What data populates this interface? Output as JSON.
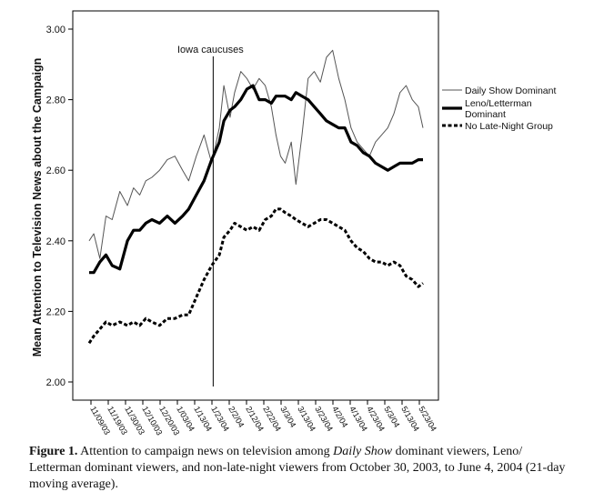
{
  "chart_data": {
    "type": "line",
    "ylabel": "Mean Attention to Television News about the Campaign",
    "ylim": [
      2.0,
      3.0
    ],
    "yticks": [
      "2.00",
      "2.20",
      "2.40",
      "2.60",
      "2.80",
      "3.00"
    ],
    "x_tick_labels": [
      "11/09/03",
      "11/19/03",
      "11/30/03",
      "12/10/03",
      "12/20/03",
      "1/03/04",
      "1/13/04",
      "1/23/04",
      "2/2/04",
      "2/12/04",
      "2/22/04",
      "3/3/04",
      "3/13/04",
      "3/23/04",
      "4/2/04",
      "4/13/04",
      "4/23/04",
      "5/3/04",
      "5/13/04",
      "5/23/04"
    ],
    "x_range": [
      "10/30/03",
      "6/4/04"
    ],
    "grid": false,
    "legend_position": "right",
    "annotation": {
      "label": "Iowa caucuses",
      "x": "1/19/04"
    },
    "series": [
      {
        "name": "Daily Show Dominant",
        "style": "thin",
        "color": "#555555",
        "x": [
          "10/30/03",
          "11/02/03",
          "11/06/03",
          "11/10/03",
          "11/14/03",
          "11/19/03",
          "11/24/03",
          "11/28/03",
          "12/02/03",
          "12/06/03",
          "12/10/03",
          "12/15/03",
          "12/20/03",
          "12/25/03",
          "12/30/03",
          "1/03/04",
          "1/08/04",
          "1/13/04",
          "1/18/04",
          "1/23/04",
          "1/26/04",
          "1/30/04",
          "2/02/04",
          "2/06/04",
          "2/10/04",
          "2/14/04",
          "2/18/04",
          "2/22/04",
          "2/26/04",
          "2/29/04",
          "3/03/04",
          "3/06/04",
          "3/10/04",
          "3/13/04",
          "3/17/04",
          "3/21/04",
          "3/25/04",
          "3/29/04",
          "4/02/04",
          "4/06/04",
          "4/10/04",
          "4/14/04",
          "4/18/04",
          "4/22/04",
          "4/26/04",
          "4/30/04",
          "5/04/04",
          "5/08/04",
          "5/12/04",
          "5/16/04",
          "5/20/04",
          "5/24/04",
          "5/28/04",
          "6/01/04",
          "6/04/04"
        ],
        "values": [
          2.4,
          2.42,
          2.35,
          2.47,
          2.46,
          2.54,
          2.5,
          2.55,
          2.53,
          2.57,
          2.58,
          2.6,
          2.63,
          2.64,
          2.6,
          2.57,
          2.64,
          2.7,
          2.62,
          2.72,
          2.84,
          2.75,
          2.82,
          2.88,
          2.86,
          2.83,
          2.86,
          2.84,
          2.78,
          2.7,
          2.64,
          2.62,
          2.68,
          2.56,
          2.7,
          2.86,
          2.88,
          2.85,
          2.92,
          2.94,
          2.86,
          2.8,
          2.72,
          2.68,
          2.66,
          2.64,
          2.68,
          2.7,
          2.72,
          2.76,
          2.82,
          2.84,
          2.8,
          2.78,
          2.72
        ]
      },
      {
        "name": "Leno/Letterman Dominant",
        "style": "thick",
        "color": "#000000",
        "x": [
          "10/30/03",
          "11/02/03",
          "11/06/03",
          "11/10/03",
          "11/14/03",
          "11/19/03",
          "11/24/03",
          "11/28/03",
          "12/02/03",
          "12/06/03",
          "12/10/03",
          "12/15/03",
          "12/20/03",
          "12/25/03",
          "12/30/03",
          "1/03/04",
          "1/08/04",
          "1/13/04",
          "1/18/04",
          "1/23/04",
          "1/26/04",
          "1/30/04",
          "2/02/04",
          "2/06/04",
          "2/10/04",
          "2/14/04",
          "2/18/04",
          "2/22/04",
          "2/26/04",
          "2/29/04",
          "3/03/04",
          "3/06/04",
          "3/10/04",
          "3/13/04",
          "3/17/04",
          "3/21/04",
          "3/25/04",
          "3/29/04",
          "4/02/04",
          "4/06/04",
          "4/10/04",
          "4/14/04",
          "4/18/04",
          "4/22/04",
          "4/26/04",
          "4/30/04",
          "5/04/04",
          "5/08/04",
          "5/12/04",
          "5/16/04",
          "5/20/04",
          "5/24/04",
          "5/28/04",
          "6/01/04",
          "6/04/04"
        ],
        "values": [
          2.31,
          2.31,
          2.34,
          2.36,
          2.33,
          2.32,
          2.4,
          2.43,
          2.43,
          2.45,
          2.46,
          2.45,
          2.47,
          2.45,
          2.47,
          2.49,
          2.53,
          2.57,
          2.63,
          2.68,
          2.74,
          2.77,
          2.78,
          2.8,
          2.83,
          2.84,
          2.8,
          2.8,
          2.79,
          2.81,
          2.81,
          2.81,
          2.8,
          2.82,
          2.81,
          2.8,
          2.78,
          2.76,
          2.74,
          2.73,
          2.72,
          2.72,
          2.68,
          2.67,
          2.65,
          2.64,
          2.62,
          2.61,
          2.6,
          2.61,
          2.62,
          2.62,
          2.62,
          2.63,
          2.63
        ]
      },
      {
        "name": "No Late-Night Group",
        "style": "dashed",
        "color": "#000000",
        "x": [
          "10/30/03",
          "11/02/03",
          "11/06/03",
          "11/10/03",
          "11/14/03",
          "11/19/03",
          "11/24/03",
          "11/28/03",
          "12/02/03",
          "12/06/03",
          "12/10/03",
          "12/15/03",
          "12/20/03",
          "12/25/03",
          "12/30/03",
          "1/03/04",
          "1/08/04",
          "1/13/04",
          "1/18/04",
          "1/23/04",
          "1/26/04",
          "1/30/04",
          "2/02/04",
          "2/06/04",
          "2/10/04",
          "2/14/04",
          "2/18/04",
          "2/22/04",
          "2/26/04",
          "2/29/04",
          "3/03/04",
          "3/06/04",
          "3/10/04",
          "3/13/04",
          "3/17/04",
          "3/21/04",
          "3/25/04",
          "3/29/04",
          "4/02/04",
          "4/06/04",
          "4/10/04",
          "4/14/04",
          "4/18/04",
          "4/22/04",
          "4/26/04",
          "4/30/04",
          "5/04/04",
          "5/08/04",
          "5/12/04",
          "5/16/04",
          "5/20/04",
          "5/24/04",
          "5/28/04",
          "6/01/04",
          "6/04/04"
        ],
        "values": [
          2.11,
          2.13,
          2.15,
          2.17,
          2.16,
          2.17,
          2.16,
          2.17,
          2.16,
          2.18,
          2.17,
          2.16,
          2.18,
          2.18,
          2.19,
          2.19,
          2.24,
          2.29,
          2.33,
          2.36,
          2.41,
          2.43,
          2.45,
          2.44,
          2.43,
          2.44,
          2.43,
          2.46,
          2.47,
          2.49,
          2.49,
          2.48,
          2.47,
          2.46,
          2.45,
          2.44,
          2.45,
          2.46,
          2.46,
          2.45,
          2.44,
          2.43,
          2.4,
          2.38,
          2.37,
          2.35,
          2.34,
          2.34,
          2.33,
          2.34,
          2.33,
          2.3,
          2.29,
          2.27,
          2.28
        ]
      }
    ]
  },
  "caption": {
    "label": "Figure 1.",
    "part1": " Attention to campaign news on television among ",
    "italic": "Daily Show",
    "part2": " dominant viewers, Leno/ Letterman dominant viewers, and non-late-night viewers from October 30, 2003, to June 4, 2004 (21-day moving average)."
  }
}
